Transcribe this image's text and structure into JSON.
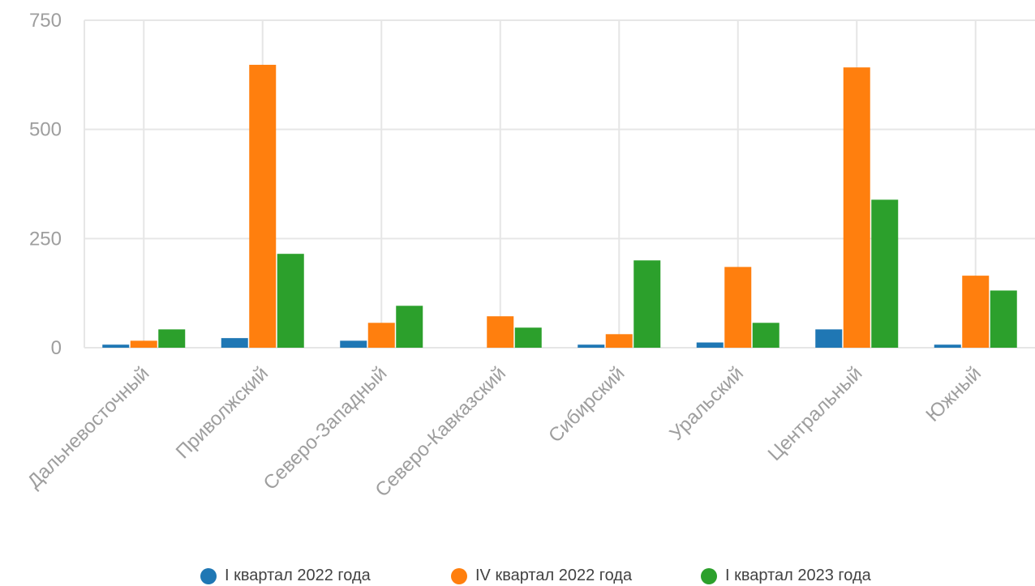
{
  "chart_data": {
    "type": "bar",
    "categories": [
      "Дальневосточный",
      "Приволжский",
      "Северо-Западный",
      "Северо-Кавказский",
      "Сибирский",
      "Уральский",
      "Центральный",
      "Южный"
    ],
    "series": [
      {
        "name": "I квартал 2022 года",
        "color": "#1f77b4",
        "values": [
          7,
          22,
          16,
          0,
          7,
          12,
          42,
          7
        ]
      },
      {
        "name": "IV квартал 2022 года",
        "color": "#ff7f0e",
        "values": [
          16,
          648,
          57,
          72,
          31,
          185,
          642,
          165
        ]
      },
      {
        "name": "I квартал 2023 года",
        "color": "#2ca02c",
        "values": [
          42,
          215,
          96,
          46,
          200,
          57,
          339,
          131
        ]
      }
    ],
    "yticks": [
      "0",
      "250",
      "500",
      "750"
    ],
    "ylim": [
      0,
      750
    ],
    "grid": true,
    "legend_position": "bottom"
  }
}
